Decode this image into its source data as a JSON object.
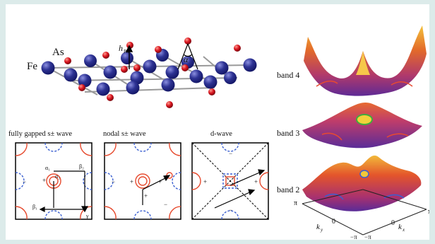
{
  "lattice": {
    "fe_label": "Fe",
    "as_label": "As",
    "height_label": "h",
    "height_sub": "Pn",
    "angle_label": "α"
  },
  "panels": [
    {
      "title": "fully gapped s± wave",
      "kind": "fully-gapped"
    },
    {
      "title": "nodal s± wave",
      "kind": "nodal"
    },
    {
      "title": "d-wave",
      "kind": "d-wave"
    }
  ],
  "panel_marks": {
    "alpha1": "α₁",
    "alpha2": "α₂",
    "beta1": "β₁",
    "beta2": "β₂",
    "gamma": "γ",
    "plus": "+",
    "minus": "−"
  },
  "bands": {
    "band4": "band 4",
    "band3": "band 3",
    "band2": "band 2"
  },
  "axes": {
    "ky": "k",
    "ky_sub": "y",
    "kx": "k",
    "kx_sub": "x",
    "pi_label": "π",
    "neg_pi_label": "−π",
    "zero_label": "0"
  },
  "colors": {
    "fe_atom": "#2b2f8f",
    "as_atom": "#d6121c",
    "positive_gap": "#e64a2e",
    "negative_gap": "#3a5fd0",
    "surface_low": "#6a2f9a",
    "surface_high": "#f0b020"
  }
}
